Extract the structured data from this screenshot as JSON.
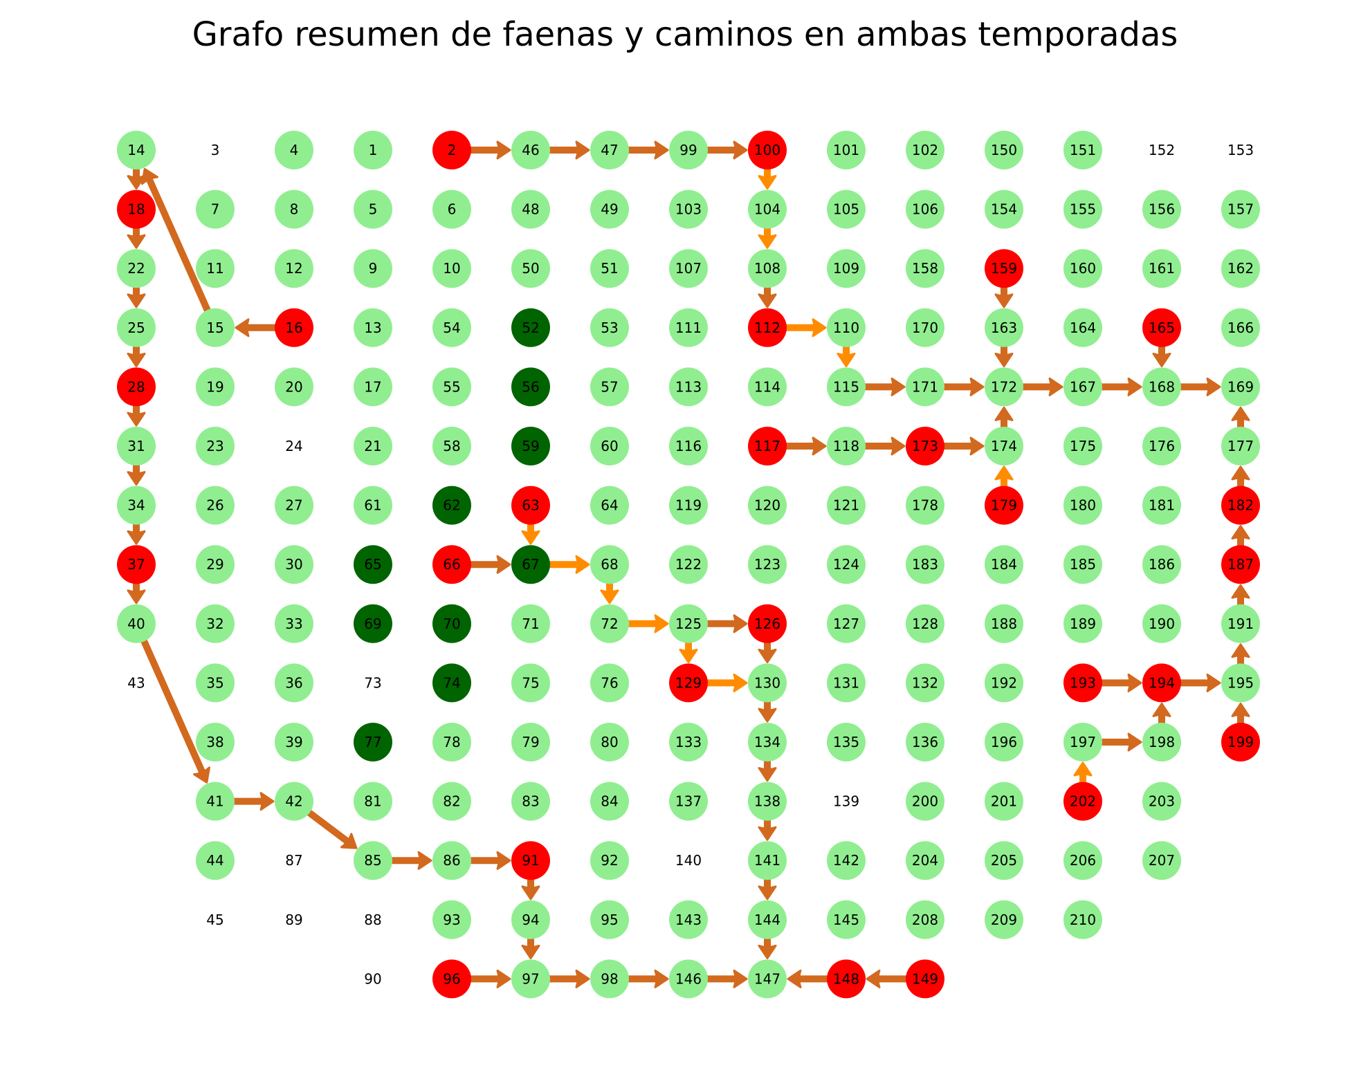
{
  "title": "Grafo resumen de faenas y caminos en ambas temporadas",
  "colors": {
    "normal": "#90ee90",
    "faena": "#ff0000",
    "dark": "#006400",
    "edge_dark": "#d2691e",
    "edge_light": "#ff8c00"
  },
  "columns": [
    [
      "14",
      "18",
      "22",
      "25",
      "28",
      "31",
      "34",
      "37",
      "40",
      "43"
    ],
    [
      "3",
      "7",
      "11",
      "15",
      "19",
      "23",
      "26",
      "29",
      "32",
      "35",
      "38",
      "41",
      "44",
      "45"
    ],
    [
      "4",
      "8",
      "12",
      "16",
      "20",
      "24",
      "27",
      "30",
      "33",
      "36",
      "39",
      "42",
      "87",
      "89"
    ],
    [
      "1",
      "5",
      "9",
      "13",
      "17",
      "21",
      "61",
      "65",
      "69",
      "73",
      "77",
      "81",
      "85",
      "88",
      "90"
    ],
    [
      "2",
      "6",
      "10",
      "54",
      "55",
      "58",
      "62",
      "66",
      "70",
      "74",
      "78",
      "82",
      "86",
      "93",
      "96"
    ],
    [
      "46",
      "48",
      "50",
      "52",
      "56",
      "59",
      "63",
      "67",
      "71",
      "75",
      "79",
      "83",
      "91",
      "94",
      "97"
    ],
    [
      "47",
      "49",
      "51",
      "53",
      "57",
      "60",
      "64",
      "68",
      "72",
      "76",
      "80",
      "84",
      "92",
      "95",
      "98"
    ],
    [
      "99",
      "103",
      "107",
      "111",
      "113",
      "116",
      "119",
      "122",
      "125",
      "129",
      "133",
      "137",
      "140",
      "143",
      "146"
    ],
    [
      "100",
      "104",
      "108",
      "112",
      "114",
      "117",
      "120",
      "123",
      "126",
      "130",
      "134",
      "138",
      "141",
      "144",
      "147"
    ],
    [
      "101",
      "105",
      "109",
      "110",
      "115",
      "118",
      "121",
      "124",
      "127",
      "131",
      "135",
      "139",
      "142",
      "145",
      "148"
    ],
    [
      "102",
      "106",
      "158",
      "170",
      "171",
      "173",
      "178",
      "183",
      "128",
      "132",
      "136",
      "200",
      "204",
      "208",
      "149"
    ],
    [
      "150",
      "154",
      "159",
      "163",
      "172",
      "174",
      "179",
      "184",
      "188",
      "192",
      "196",
      "201",
      "205",
      "209"
    ],
    [
      "151",
      "155",
      "160",
      "164",
      "167",
      "175",
      "180",
      "185",
      "189",
      "193",
      "197",
      "202",
      "206",
      "210"
    ],
    [
      "152",
      "156",
      "161",
      "165",
      "168",
      "176",
      "181",
      "186",
      "190",
      "194",
      "198",
      "203",
      "207"
    ],
    [
      "153",
      "157",
      "162",
      "166",
      "169",
      "177",
      "182",
      "187",
      "191",
      "195",
      "199"
    ]
  ],
  "red_nodes": [
    "2",
    "100",
    "159",
    "112",
    "165",
    "16",
    "18",
    "117",
    "173",
    "63",
    "179",
    "182",
    "66",
    "187",
    "28",
    "126",
    "129",
    "193",
    "194",
    "199",
    "37",
    "202",
    "91",
    "96",
    "148",
    "149"
  ],
  "dark_nodes": [
    "52",
    "56",
    "59",
    "62",
    "65",
    "67",
    "69",
    "70",
    "74",
    "77"
  ],
  "plain_nodes": [
    "152",
    "153",
    "3",
    "24",
    "73",
    "139",
    "140",
    "43",
    "87",
    "88",
    "45",
    "89",
    "90"
  ],
  "edges": [
    {
      "from": "2",
      "to": "46",
      "color": "dark"
    },
    {
      "from": "46",
      "to": "47",
      "color": "dark"
    },
    {
      "from": "47",
      "to": "99",
      "color": "dark"
    },
    {
      "from": "99",
      "to": "100",
      "color": "dark"
    },
    {
      "from": "100",
      "to": "104",
      "color": "light"
    },
    {
      "from": "104",
      "to": "108",
      "color": "light"
    },
    {
      "from": "108",
      "to": "112",
      "color": "dark"
    },
    {
      "from": "112",
      "to": "110",
      "color": "light"
    },
    {
      "from": "110",
      "to": "115",
      "color": "light"
    },
    {
      "from": "115",
      "to": "171",
      "color": "dark"
    },
    {
      "from": "171",
      "to": "172",
      "color": "dark"
    },
    {
      "from": "172",
      "to": "167",
      "color": "dark"
    },
    {
      "from": "167",
      "to": "168",
      "color": "dark"
    },
    {
      "from": "168",
      "to": "169",
      "color": "dark"
    },
    {
      "from": "159",
      "to": "163",
      "color": "dark"
    },
    {
      "from": "163",
      "to": "172",
      "color": "dark"
    },
    {
      "from": "165",
      "to": "168",
      "color": "dark"
    },
    {
      "from": "174",
      "to": "172",
      "color": "dark"
    },
    {
      "from": "179",
      "to": "174",
      "color": "light"
    },
    {
      "from": "117",
      "to": "118",
      "color": "dark"
    },
    {
      "from": "118",
      "to": "173",
      "color": "dark"
    },
    {
      "from": "173",
      "to": "174",
      "color": "dark"
    },
    {
      "from": "177",
      "to": "169",
      "color": "dark"
    },
    {
      "from": "182",
      "to": "177",
      "color": "dark"
    },
    {
      "from": "187",
      "to": "182",
      "color": "dark"
    },
    {
      "from": "191",
      "to": "187",
      "color": "dark"
    },
    {
      "from": "195",
      "to": "191",
      "color": "dark"
    },
    {
      "from": "199",
      "to": "195",
      "color": "dark"
    },
    {
      "from": "193",
      "to": "194",
      "color": "dark"
    },
    {
      "from": "194",
      "to": "195",
      "color": "dark"
    },
    {
      "from": "198",
      "to": "194",
      "color": "dark"
    },
    {
      "from": "197",
      "to": "198",
      "color": "dark"
    },
    {
      "from": "202",
      "to": "197",
      "color": "light"
    },
    {
      "from": "16",
      "to": "15",
      "color": "dark"
    },
    {
      "from": "15",
      "to": "14",
      "color": "dark"
    },
    {
      "from": "14",
      "to": "18",
      "color": "dark"
    },
    {
      "from": "18",
      "to": "22",
      "color": "dark"
    },
    {
      "from": "22",
      "to": "25",
      "color": "dark"
    },
    {
      "from": "25",
      "to": "28",
      "color": "dark"
    },
    {
      "from": "28",
      "to": "31",
      "color": "dark"
    },
    {
      "from": "31",
      "to": "34",
      "color": "dark"
    },
    {
      "from": "34",
      "to": "37",
      "color": "dark"
    },
    {
      "from": "37",
      "to": "40",
      "color": "dark"
    },
    {
      "from": "40",
      "to": "41",
      "color": "dark"
    },
    {
      "from": "41",
      "to": "42",
      "color": "dark"
    },
    {
      "from": "42",
      "to": "85",
      "color": "dark"
    },
    {
      "from": "85",
      "to": "86",
      "color": "dark"
    },
    {
      "from": "86",
      "to": "91",
      "color": "dark"
    },
    {
      "from": "91",
      "to": "94",
      "color": "dark"
    },
    {
      "from": "94",
      "to": "97",
      "color": "dark"
    },
    {
      "from": "96",
      "to": "97",
      "color": "dark"
    },
    {
      "from": "97",
      "to": "98",
      "color": "dark"
    },
    {
      "from": "98",
      "to": "146",
      "color": "dark"
    },
    {
      "from": "146",
      "to": "147",
      "color": "dark"
    },
    {
      "from": "148",
      "to": "147",
      "color": "dark"
    },
    {
      "from": "149",
      "to": "148",
      "color": "dark"
    },
    {
      "from": "63",
      "to": "67",
      "color": "light"
    },
    {
      "from": "66",
      "to": "67",
      "color": "dark"
    },
    {
      "from": "67",
      "to": "68",
      "color": "light"
    },
    {
      "from": "68",
      "to": "72",
      "color": "light"
    },
    {
      "from": "72",
      "to": "125",
      "color": "light"
    },
    {
      "from": "125",
      "to": "126",
      "color": "dark"
    },
    {
      "from": "125",
      "to": "129",
      "color": "light"
    },
    {
      "from": "129",
      "to": "130",
      "color": "light"
    },
    {
      "from": "126",
      "to": "130",
      "color": "dark"
    },
    {
      "from": "130",
      "to": "134",
      "color": "dark"
    },
    {
      "from": "134",
      "to": "138",
      "color": "dark"
    },
    {
      "from": "138",
      "to": "141",
      "color": "dark"
    },
    {
      "from": "141",
      "to": "144",
      "color": "dark"
    },
    {
      "from": "144",
      "to": "147",
      "color": "dark"
    }
  ]
}
